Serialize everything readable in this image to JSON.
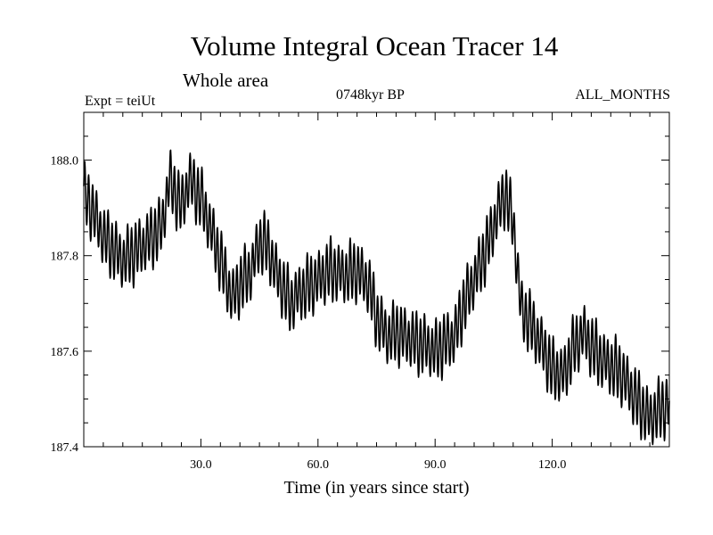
{
  "chart_data": {
    "type": "line",
    "title": "Volume Integral Ocean Tracer 14",
    "subtitle": "Whole area",
    "experiment_label": "Expt = teiUt",
    "period_label": "0748kyr BP",
    "months_label": "ALL_MONTHS",
    "xlabel": "Time (in years since start)",
    "ylabel": "",
    "xlim": [
      0,
      150
    ],
    "ylim": [
      187.4,
      188.1
    ],
    "x_ticks": [
      30,
      60,
      90,
      120
    ],
    "x_tick_labels": [
      "30.0",
      "60.0",
      "90.0",
      "120.0"
    ],
    "y_ticks": [
      187.4,
      187.6,
      187.8,
      188.0
    ],
    "y_tick_labels": [
      "187.4",
      "187.6",
      "187.8",
      "188.0"
    ],
    "seasonal_amplitude": 0.055,
    "series": [
      {
        "name": "Tracer 14",
        "color": "#000000",
        "trend_x": [
          0,
          2,
          5,
          10,
          15,
          20,
          22,
          25,
          27,
          30,
          32,
          35,
          38,
          40,
          43,
          45,
          47,
          50,
          53,
          55,
          60,
          63,
          67,
          70,
          73,
          75,
          78,
          80,
          85,
          88,
          90,
          93,
          95,
          97,
          100,
          103,
          106,
          108,
          110,
          112,
          115,
          118,
          120,
          123,
          125,
          128,
          130,
          133,
          135,
          138,
          140,
          143,
          145,
          148,
          150
        ],
        "trend_y": [
          187.93,
          187.9,
          187.84,
          187.79,
          187.82,
          187.86,
          187.96,
          187.9,
          187.96,
          187.92,
          187.87,
          187.79,
          187.71,
          187.74,
          187.77,
          187.83,
          187.82,
          187.75,
          187.7,
          187.72,
          187.75,
          187.77,
          187.76,
          187.77,
          187.74,
          187.67,
          187.63,
          187.64,
          187.62,
          187.61,
          187.6,
          187.62,
          187.63,
          187.69,
          187.75,
          187.81,
          187.89,
          187.93,
          187.87,
          187.69,
          187.65,
          187.6,
          187.56,
          187.55,
          187.6,
          187.64,
          187.61,
          187.58,
          187.57,
          187.55,
          187.52,
          187.48,
          187.46,
          187.48,
          187.49
        ]
      }
    ]
  }
}
